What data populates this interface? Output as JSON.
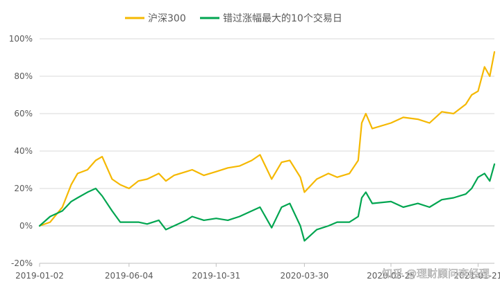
{
  "colors": {
    "series1": "#F5B800",
    "series2": "#00A550",
    "grid": "#d9d9d9",
    "axis": "#bfbfbf"
  },
  "watermark": "知乎 @理财顾问李经理",
  "chart_data": {
    "type": "line",
    "title": "",
    "xlabel": "",
    "ylabel": "",
    "ylim": [
      -20,
      100
    ],
    "yticks": [
      "-20%",
      "0%",
      "20%",
      "40%",
      "60%",
      "80%",
      "100%"
    ],
    "xticks": [
      "2019-01-02",
      "2019-06-04",
      "2019-10-31",
      "2020-03-30",
      "2020-08-25",
      "2021-01-21"
    ],
    "xlim": [
      "2019-01-02",
      "2021-02-18"
    ],
    "grid": true,
    "legend": "top",
    "series": [
      {
        "name": "沪深300",
        "x": [
          "2019-01-02",
          "2019-01-20",
          "2019-02-10",
          "2019-02-25",
          "2019-03-08",
          "2019-03-25",
          "2019-04-08",
          "2019-04-19",
          "2019-05-06",
          "2019-05-20",
          "2019-06-04",
          "2019-06-20",
          "2019-07-05",
          "2019-07-25",
          "2019-08-06",
          "2019-08-20",
          "2019-09-10",
          "2019-09-20",
          "2019-10-10",
          "2019-10-31",
          "2019-11-20",
          "2019-12-10",
          "2019-12-31",
          "2020-01-14",
          "2020-02-03",
          "2020-02-20",
          "2020-03-05",
          "2020-03-23",
          "2020-03-30",
          "2020-04-20",
          "2020-05-10",
          "2020-05-25",
          "2020-06-15",
          "2020-06-30",
          "2020-07-06",
          "2020-07-13",
          "2020-07-24",
          "2020-08-25",
          "2020-09-15",
          "2020-10-10",
          "2020-10-30",
          "2020-11-20",
          "2020-12-10",
          "2020-12-31",
          "2021-01-10",
          "2021-01-21",
          "2021-02-01",
          "2021-02-10",
          "2021-02-18"
        ],
        "values": [
          0,
          2,
          10,
          22,
          28,
          30,
          35,
          37,
          25,
          22,
          20,
          24,
          25,
          28,
          24,
          27,
          29,
          30,
          27,
          29,
          31,
          32,
          35,
          38,
          25,
          34,
          35,
          26,
          18,
          25,
          28,
          26,
          28,
          35,
          55,
          60,
          52,
          55,
          58,
          57,
          55,
          61,
          60,
          65,
          70,
          72,
          85,
          80,
          93
        ]
      },
      {
        "name": "错过涨幅最大的10个交易日",
        "x": [
          "2019-01-02",
          "2019-01-20",
          "2019-02-10",
          "2019-02-25",
          "2019-03-08",
          "2019-03-25",
          "2019-04-08",
          "2019-04-19",
          "2019-05-06",
          "2019-05-20",
          "2019-06-04",
          "2019-06-20",
          "2019-07-05",
          "2019-07-25",
          "2019-08-06",
          "2019-08-20",
          "2019-09-10",
          "2019-09-20",
          "2019-10-10",
          "2019-10-31",
          "2019-11-20",
          "2019-12-10",
          "2019-12-31",
          "2020-01-14",
          "2020-02-03",
          "2020-02-20",
          "2020-03-05",
          "2020-03-23",
          "2020-03-30",
          "2020-04-20",
          "2020-05-10",
          "2020-05-25",
          "2020-06-15",
          "2020-06-30",
          "2020-07-06",
          "2020-07-13",
          "2020-07-24",
          "2020-08-25",
          "2020-09-15",
          "2020-10-10",
          "2020-10-30",
          "2020-11-20",
          "2020-12-10",
          "2020-12-31",
          "2021-01-10",
          "2021-01-21",
          "2021-02-01",
          "2021-02-10",
          "2021-02-18"
        ],
        "values": [
          0,
          5,
          8,
          13,
          15,
          18,
          20,
          16,
          8,
          2,
          2,
          2,
          1,
          3,
          -2,
          0,
          3,
          5,
          3,
          4,
          3,
          5,
          8,
          10,
          -1,
          10,
          12,
          0,
          -8,
          -2,
          0,
          2,
          2,
          5,
          15,
          18,
          12,
          13,
          10,
          12,
          10,
          14,
          15,
          17,
          20,
          26,
          28,
          24,
          33
        ]
      }
    ]
  }
}
